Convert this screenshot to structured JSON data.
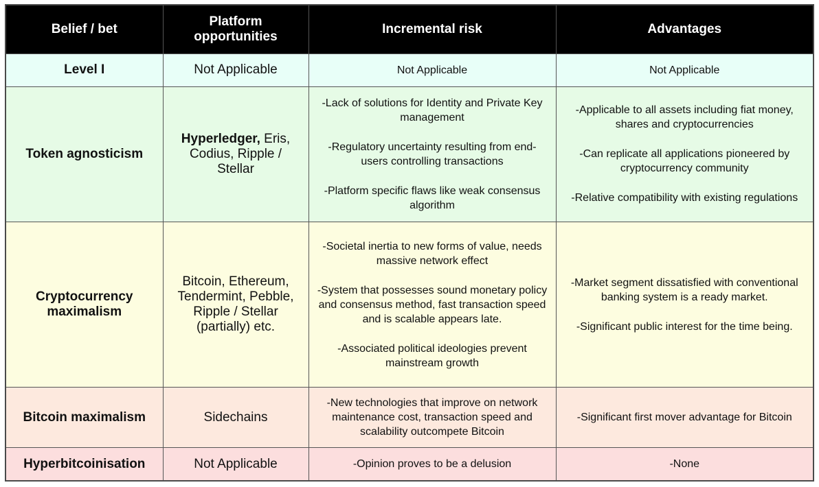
{
  "headers": [
    "Belief / bet",
    "Platform opportunities",
    "Incremental risk",
    "Advantages"
  ],
  "rows": [
    {
      "belief": "Level I",
      "platform_bold": "",
      "platform": "Not Applicable",
      "risks": [
        "Not Applicable"
      ],
      "advantages": [
        "Not Applicable"
      ],
      "bg": "#e8fff8"
    },
    {
      "belief": "Token agnosticism",
      "platform_bold": "Hyperledger,",
      "platform": " Eris, Codius, Ripple / Stellar",
      "risks": [
        "-Lack of solutions for Identity and Private Key management",
        "-Regulatory uncertainty resulting from end-users controlling transactions",
        "-Platform specific flaws like weak consensus algorithm"
      ],
      "advantages": [
        "-Applicable to all assets including fiat money, shares and cryptocurrencies",
        "-Can replicate all applications pioneered by cryptocurrency community",
        "-Relative compatibility with existing regulations"
      ],
      "bg": "#e6fbe6"
    },
    {
      "belief": "Cryptocurrency maximalism",
      "platform_bold": "",
      "platform": "Bitcoin, Ethereum, Tendermint, Pebble, Ripple / Stellar (partially) etc.",
      "risks": [
        "-Societal inertia to new forms of value, needs massive network effect",
        "-System that possesses sound monetary policy and consensus method, fast transaction speed and is scalable appears late.",
        "-Associated political ideologies prevent mainstream growth"
      ],
      "advantages": [
        "-Market segment dissatisfied with conventional banking system is a ready market.",
        "-Significant public interest for the time being."
      ],
      "bg": "#fdfde0"
    },
    {
      "belief": "Bitcoin maximalism",
      "platform_bold": "",
      "platform": "Sidechains",
      "risks": [
        "-New technologies that improve on network maintenance cost, transaction speed and scalability outcompete Bitcoin"
      ],
      "advantages": [
        "-Significant first mover advantage for Bitcoin"
      ],
      "bg": "#fde9de"
    },
    {
      "belief": "Hyperbitcoinisation",
      "platform_bold": "",
      "platform": "Not Applicable",
      "risks": [
        "-Opinion proves to be a delusion"
      ],
      "advantages": [
        "-None"
      ],
      "bg": "#fcdede"
    }
  ]
}
